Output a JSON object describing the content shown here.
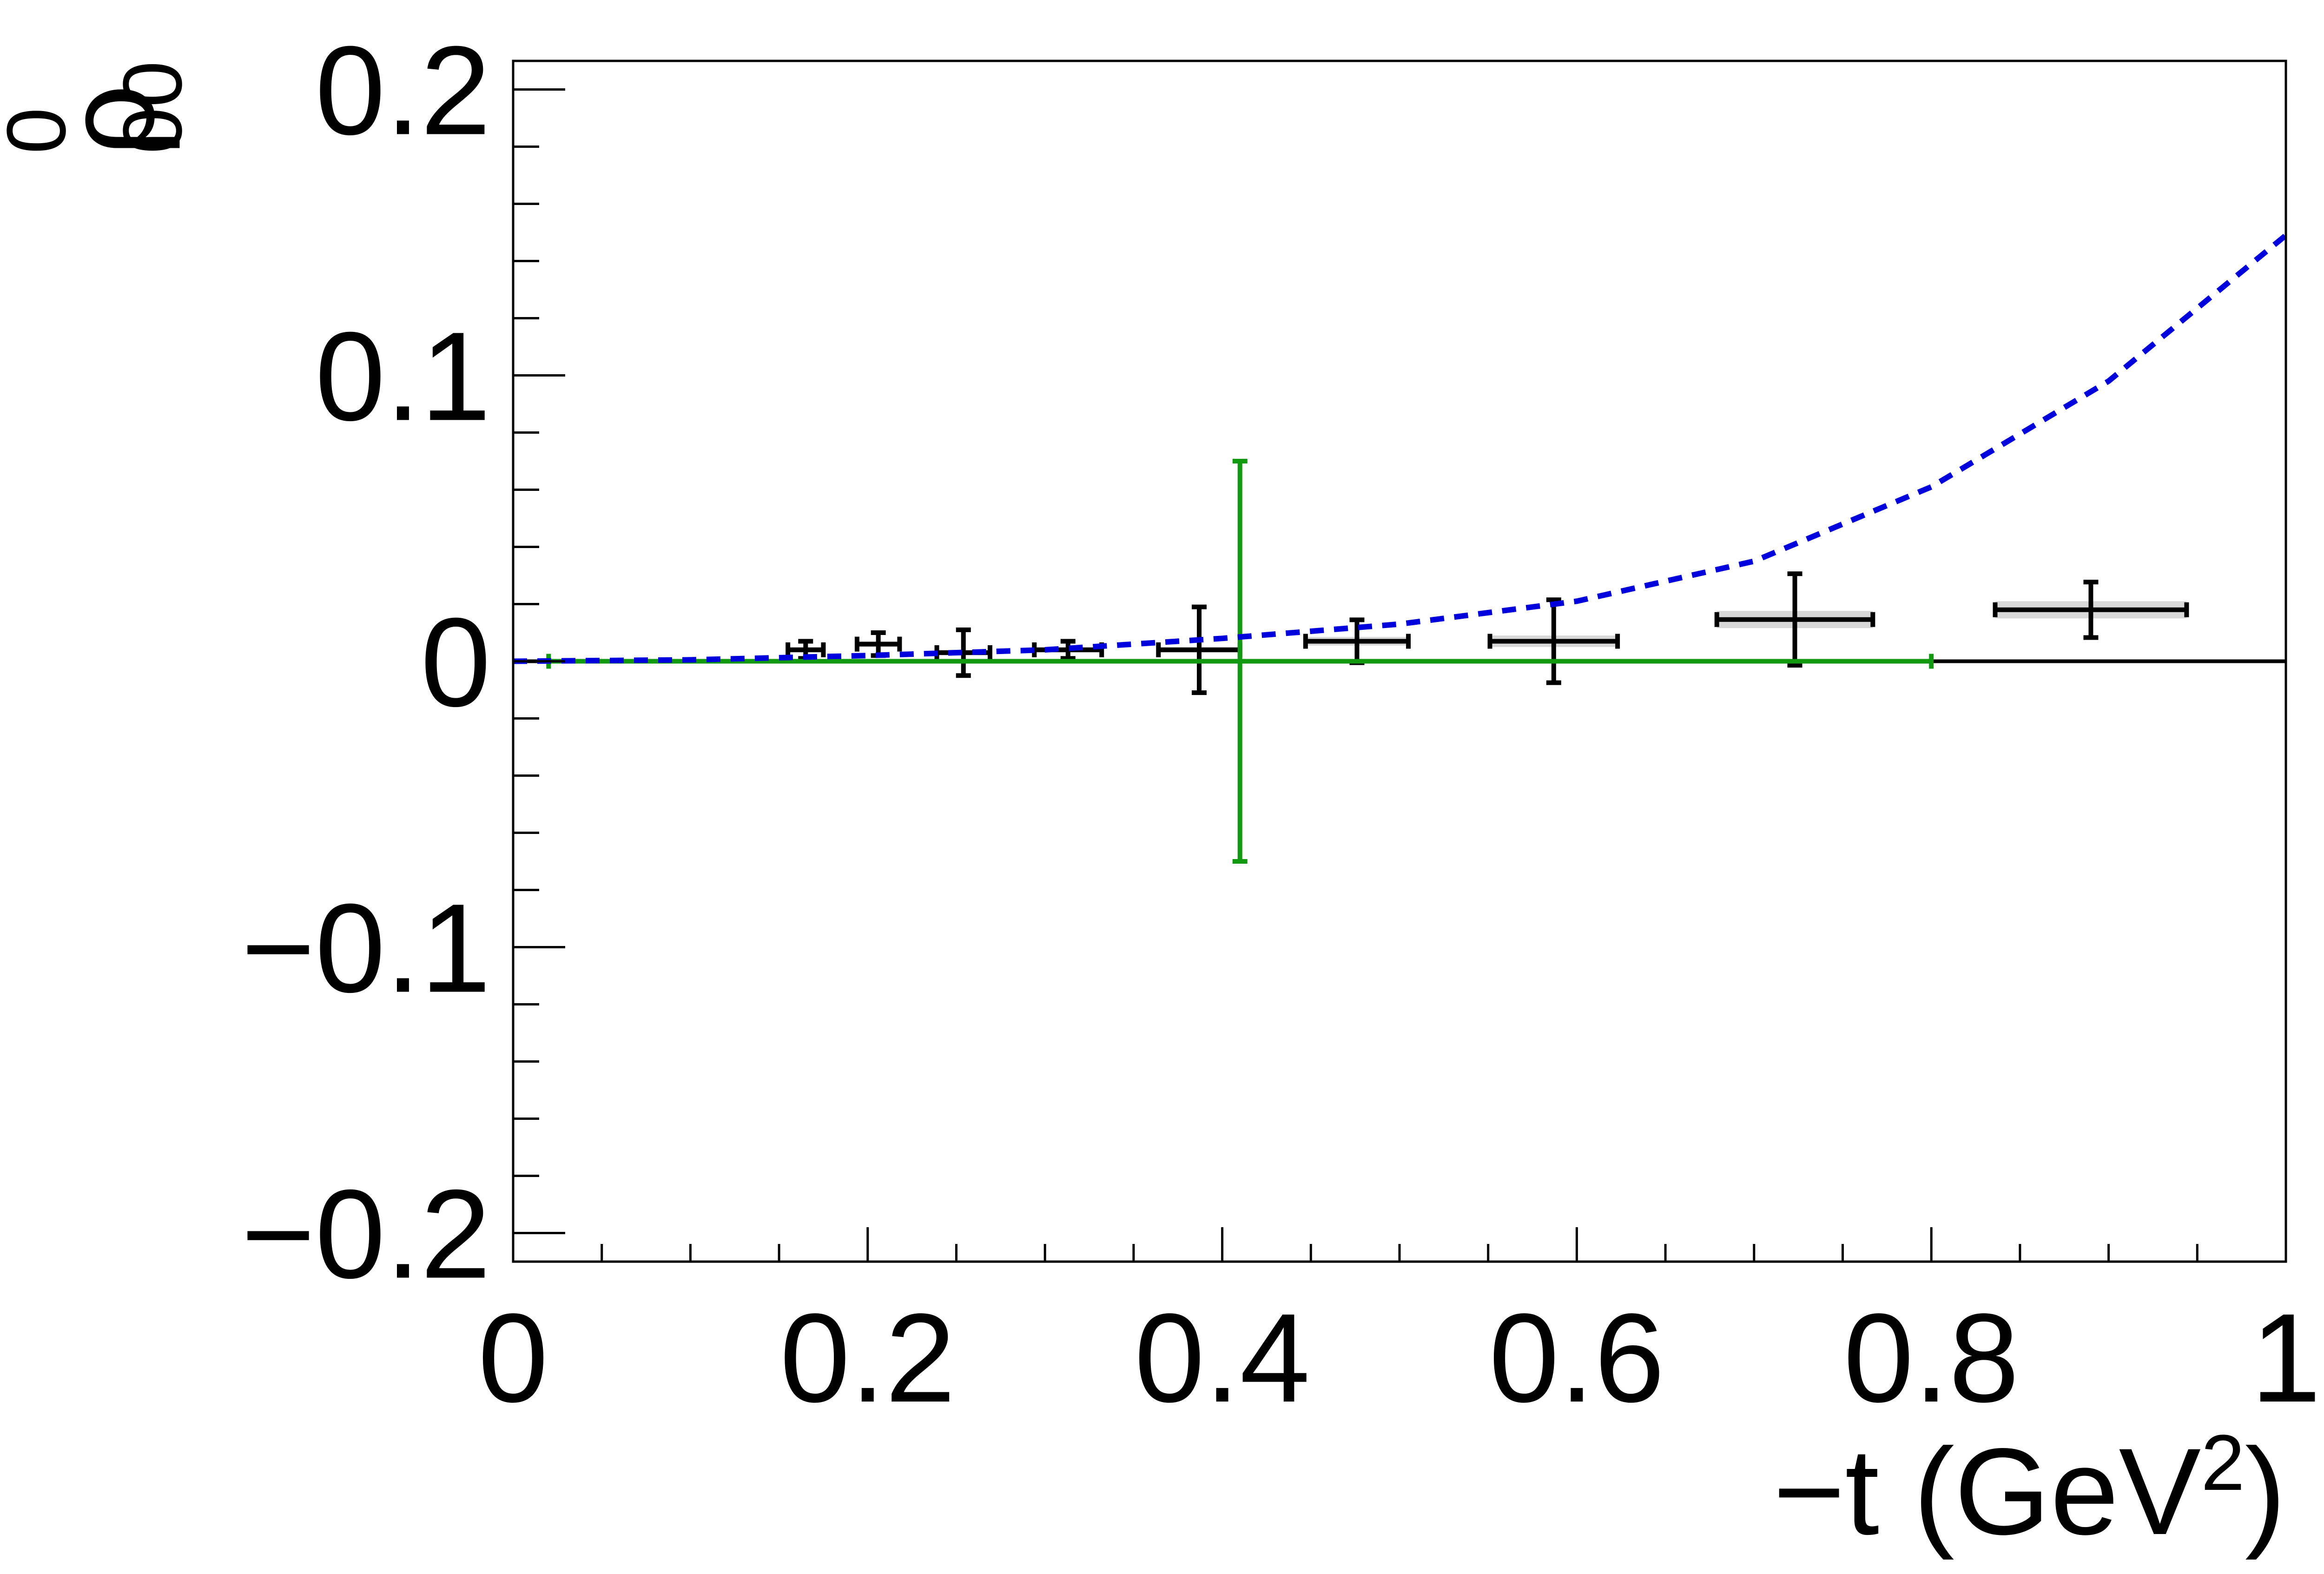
{
  "chart_data": {
    "type": "errorbar",
    "ylabel": {
      "symbol": "ρ",
      "sup": "0",
      "sub": "00"
    },
    "xlabel": {
      "text": "−t (GeV",
      "sup": "2",
      "close": ")"
    },
    "xlim": [
      0,
      1
    ],
    "ylim": [
      -0.21,
      0.21
    ],
    "xticks": [
      0,
      0.2,
      0.4,
      0.6,
      0.8,
      1
    ],
    "yticks": [
      {
        "value": -0.2,
        "label": "−0.2"
      },
      {
        "value": -0.1,
        "label": "−0.1"
      },
      0,
      0.1,
      0.2
    ],
    "xminorticks": [
      0.05,
      0.1,
      0.15,
      0.25,
      0.3,
      0.35,
      0.45,
      0.5,
      0.55,
      0.65,
      0.7,
      0.75,
      0.85,
      0.9,
      0.95
    ],
    "yminorticks": [
      -0.2,
      -0.18,
      -0.16,
      -0.14,
      -0.12,
      -0.1,
      -0.08,
      -0.06,
      -0.04,
      -0.02,
      0,
      0.02,
      0.04,
      0.06,
      0.08,
      0.1,
      0.12,
      0.14,
      0.16,
      0.18,
      0.2
    ],
    "hline": 0,
    "series": [
      {
        "kind": "errorbar",
        "color": "#000000",
        "syst_color": "#d8d8d8",
        "x": [
          0.165,
          0.206,
          0.254,
          0.313,
          0.387,
          0.476,
          0.587,
          0.723,
          0.89
        ],
        "y": [
          0.004,
          0.006,
          0.003,
          0.004,
          0.004,
          0.007,
          0.007,
          0.0146,
          0.018
        ],
        "xerr": [
          0.01,
          0.012,
          0.015,
          0.019,
          0.023,
          0.029,
          0.036,
          0.044,
          0.054
        ],
        "yerr": [
          0.003,
          0.004,
          0.008,
          0.003,
          0.015,
          0.0075,
          0.0145,
          0.016,
          0.0097
        ],
        "syst": [
          0.001,
          0.001,
          0.001,
          0.001,
          0.001,
          0.0015,
          0.002,
          0.003,
          0.003
        ]
      },
      {
        "kind": "errorbar",
        "color": "#119911",
        "x": [
          0.41
        ],
        "y": [
          0
        ],
        "xerr": [
          0.39
        ],
        "yerr": [
          0.07
        ]
      },
      {
        "kind": "line",
        "color": "#0000dd",
        "dashed": true,
        "x": [
          0,
          0.1,
          0.2,
          0.3,
          0.4,
          0.5,
          0.6,
          0.7,
          0.8,
          0.9,
          1
        ],
        "y": [
          0,
          0.0005,
          0.002,
          0.004,
          0.008,
          0.013,
          0.021,
          0.035,
          0.061,
          0.098,
          0.149
        ]
      }
    ]
  }
}
